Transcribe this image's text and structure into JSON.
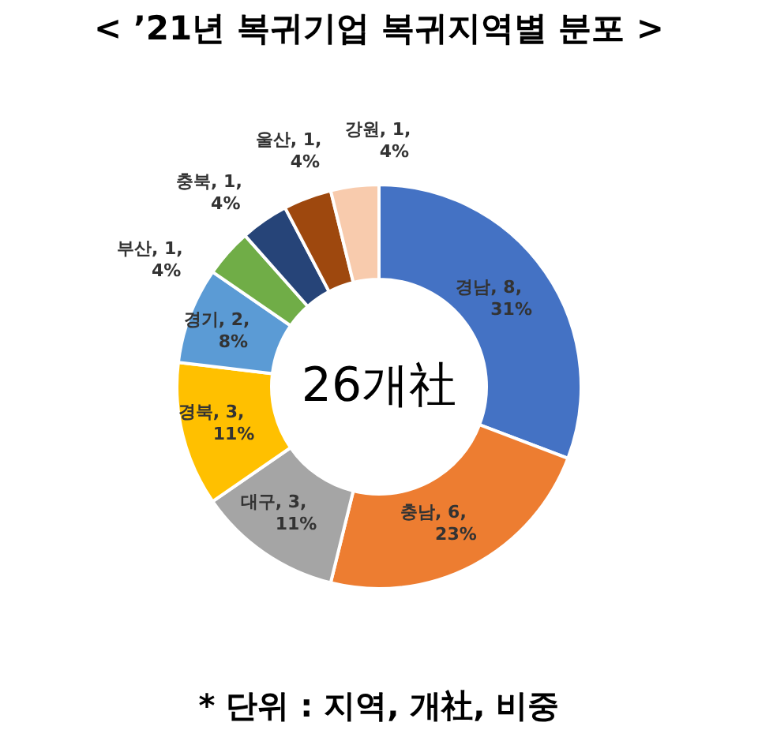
{
  "chart_data": {
    "type": "donut",
    "title": "< ’21년 복귀기업 복귀지역별 분포 >",
    "categories": [
      "경남",
      "충남",
      "대구",
      "경북",
      "경기",
      "부산",
      "충북",
      "울산",
      "강원"
    ],
    "values": [
      8,
      6,
      3,
      3,
      2,
      1,
      1,
      1,
      1
    ],
    "colors": [
      "#4472c4",
      "#ed7d31",
      "#a5a5a5",
      "#ffc000",
      "#5b9bd5",
      "#70ad47",
      "#264478",
      "#9e480e",
      "#f8cbad"
    ],
    "value_labels": [
      ", 8,\n31%",
      ", 6,\n23%",
      ", 3,\n11%",
      ", 3,\n11%",
      ", 2,\n8%",
      ", 1,\n4%",
      ", 1,\n4%",
      ", 1,\n4%",
      ", 1,\n4%"
    ],
    "legend": false,
    "annotations": [
      "26개社",
      "* 단위 : 지역, 개社, 비중"
    ]
  }
}
